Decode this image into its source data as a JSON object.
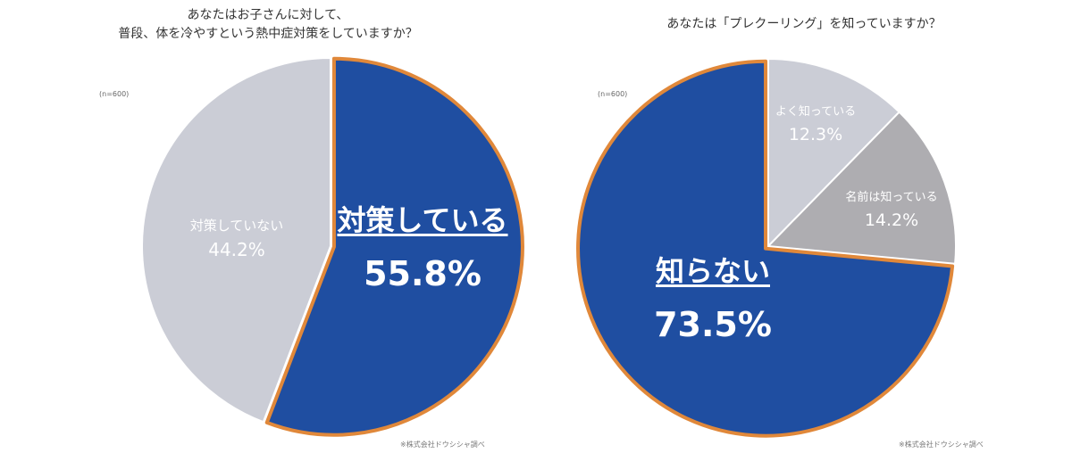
{
  "colors": {
    "blue": "#1f4ea1",
    "gray_light": "#cbcdd6",
    "gray_mid": "#aeadb1",
    "orange_border": "#e0883a",
    "white": "#ffffff"
  },
  "chart_data": [
    {
      "type": "pie",
      "title_lines": [
        "あなたはお子さんに対して、",
        "普段、体を冷やすという熱中症対策をしていますか？"
      ],
      "sample_size_label": "(n=600)",
      "source_note": "※株式会社ドウシシャ調べ",
      "slices": [
        {
          "label": "対策している",
          "value_label": "55.8%",
          "value": 55.8,
          "color": "#1f4ea1",
          "highlighted": true
        },
        {
          "label": "対策していない",
          "value_label": "44.2%",
          "value": 44.2,
          "color": "#cbcdd6",
          "highlighted": false
        }
      ]
    },
    {
      "type": "pie",
      "title_lines": [
        "あなたは「プレクーリング」を知っていますか？"
      ],
      "sample_size_label": "(n=600)",
      "source_note": "※株式会社ドウシシャ調べ",
      "slices": [
        {
          "label": "よく知っている",
          "value_label": "12.3%",
          "value": 12.3,
          "color": "#cbcdd6",
          "highlighted": false
        },
        {
          "label": "名前は知っている",
          "value_label": "14.2%",
          "value": 14.2,
          "color": "#aeadb1",
          "highlighted": false
        },
        {
          "label": "知らない",
          "value_label": "73.5%",
          "value": 73.5,
          "color": "#1f4ea1",
          "highlighted": true
        }
      ]
    }
  ]
}
